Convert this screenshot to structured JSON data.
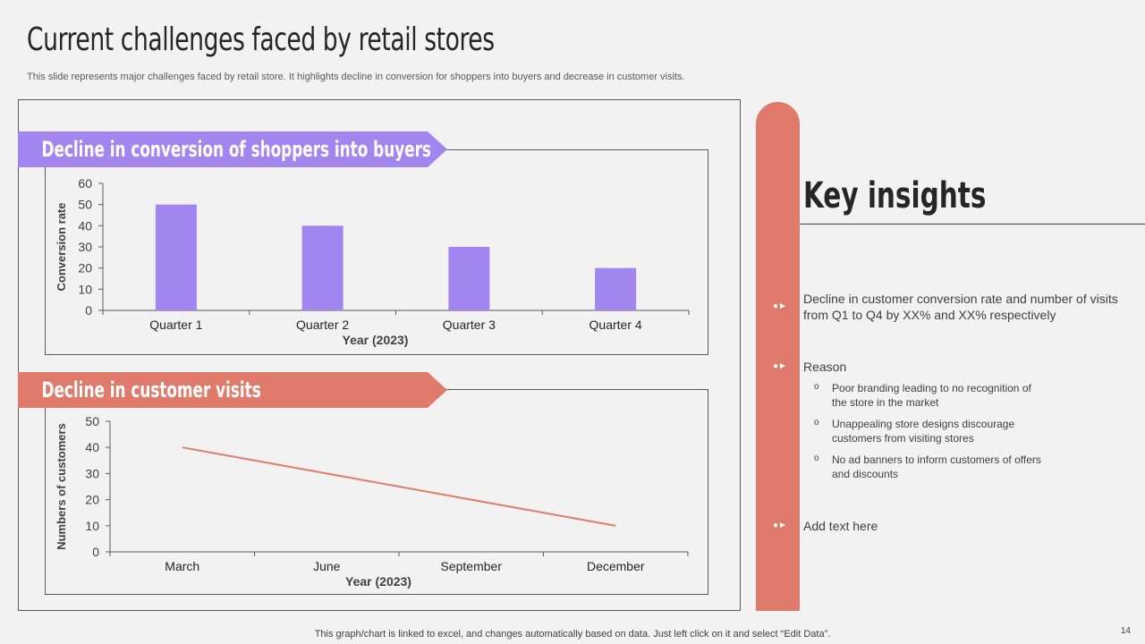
{
  "slide": {
    "title": "Current challenges faced by retail stores",
    "subtitle": "This slide represents major challenges faced by retail store. It highlights decline in conversion for shoppers into buyers and decrease in customer visits.",
    "footer": "This graph/chart is linked to excel, and changes automatically based on data. Just left click on it and select “Edit Data”.",
    "page_number": "14"
  },
  "banners": {
    "conversion": "Decline in conversion of shoppers into buyers",
    "visits": "Decline in customer visits"
  },
  "colors": {
    "bar": "#a385f0",
    "line": "#e07b6b",
    "purple_banner": "#a385f0",
    "coral_banner": "#e07b6b"
  },
  "chart_data": [
    {
      "type": "bar",
      "categories": [
        "Quarter 1",
        "Quarter 2",
        "Quarter 3",
        "Quarter 4"
      ],
      "values": [
        50,
        40,
        30,
        20
      ],
      "xlabel": "Year (2023)",
      "ylabel": "Conversion rate",
      "ylim": [
        0,
        60
      ],
      "yticks": [
        0,
        10,
        20,
        30,
        40,
        50,
        60
      ],
      "grid": false
    },
    {
      "type": "line",
      "categories": [
        "March",
        "June",
        "September",
        "December"
      ],
      "values": [
        40,
        30,
        20,
        10
      ],
      "xlabel": "Year (2023)",
      "ylabel": "Numbers of customers",
      "ylim": [
        0,
        50
      ],
      "yticks": [
        0,
        10,
        20,
        30,
        40,
        50
      ],
      "grid": false
    }
  ],
  "insights": {
    "title": "Key insights",
    "bullet_icon": "circle-arrow-icon",
    "items": [
      "Decline in customer conversion rate and number of visits from Q1 to Q4 by XX% and  XX% respectively",
      "Reason",
      "Add text here"
    ],
    "reasons": [
      "Poor branding leading to no recognition of the store in the market",
      "Unappealing store designs discourage customers from visiting stores",
      "No ad banners to inform customers of offers and discounts"
    ],
    "sub_marker": "o"
  }
}
